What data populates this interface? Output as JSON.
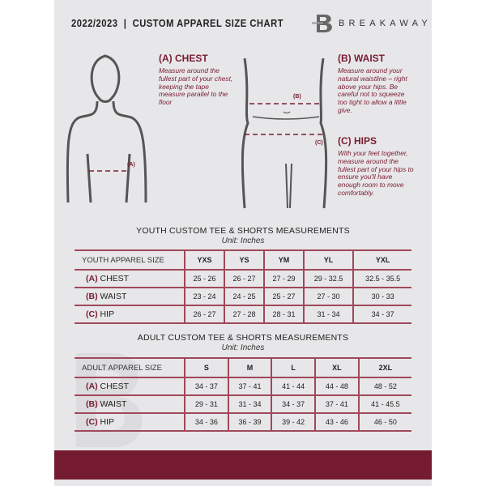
{
  "header": {
    "title": "2022/2023  |  CUSTOM APPAREL SIZE CHART",
    "brand": "BREAKAWAY",
    "logo_letter": "B"
  },
  "guide": {
    "chest": {
      "heading": "(A) CHEST",
      "text": "Measure around the fullest part of your chest, keeping the tape measure parallel to the floor",
      "marker": "(A)"
    },
    "waist": {
      "heading": "(B) WAIST",
      "text": "Measure around your natural waistline – right above your hips. Be careful not to squeeze too tight to allow a little give.",
      "marker": "(B)"
    },
    "hips": {
      "heading": "(C) HIPS",
      "text": "With your feet together, measure around the fullest part of your hips to ensure you'll have enough room to move comfortably.",
      "marker": "(C)"
    }
  },
  "youth": {
    "title": "YOUTH CUSTOM TEE & SHORTS MEASUREMENTS",
    "unit": "Unit: Inches",
    "header": "YOUTH APPAREL SIZE",
    "sizes": [
      "YXS",
      "YS",
      "YM",
      "YL",
      "YXL"
    ],
    "rows": [
      {
        "code": "(A)",
        "name": "CHEST",
        "values": [
          "25 - 26",
          "26 - 27",
          "27 - 29",
          "29 - 32.5",
          "32.5 - 35.5"
        ]
      },
      {
        "code": "(B)",
        "name": "WAIST",
        "values": [
          "23 - 24",
          "24 - 25",
          "25 - 27",
          "27 - 30",
          "30 - 33"
        ]
      },
      {
        "code": "(C)",
        "name": "HIP",
        "values": [
          "26 - 27",
          "27 - 28",
          "28 - 31",
          "31 - 34",
          "34 - 37"
        ]
      }
    ]
  },
  "adult": {
    "title": "ADULT CUSTOM TEE & SHORTS MEASUREMENTS",
    "unit": "Unit: Inches",
    "header": "ADULT APPAREL SIZE",
    "sizes": [
      "S",
      "M",
      "L",
      "XL",
      "2XL"
    ],
    "rows": [
      {
        "code": "(A)",
        "name": "CHEST",
        "values": [
          "34 - 37",
          "37 - 41",
          "41 - 44",
          "44 - 48",
          "48 - 52"
        ]
      },
      {
        "code": "(B)",
        "name": "WAIST",
        "values": [
          "29 - 31",
          "31 - 34",
          "34 - 37",
          "37 - 41",
          "41 - 45.5"
        ]
      },
      {
        "code": "(C)",
        "name": "HIP",
        "values": [
          "34 - 36",
          "36 - 39",
          "39 - 42",
          "43 - 46",
          "46 - 50"
        ]
      }
    ]
  },
  "colors": {
    "accent": "#741b31",
    "background": "#e7e7e9"
  }
}
